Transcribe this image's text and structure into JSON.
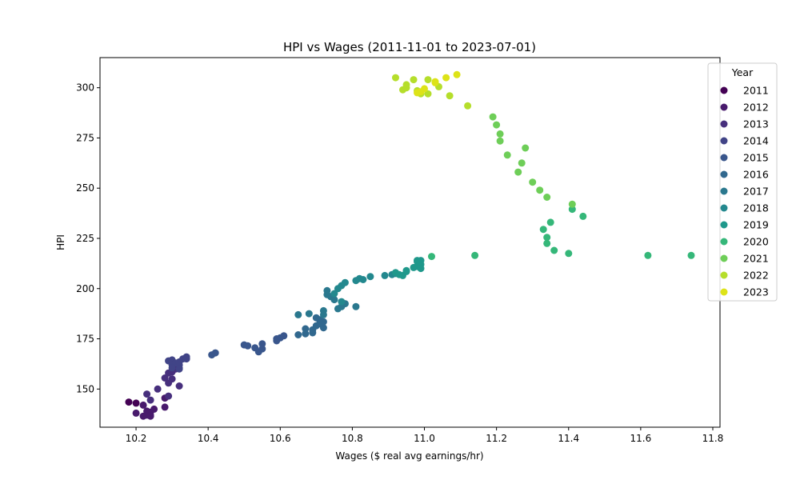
{
  "chart_data": {
    "type": "scatter",
    "title": "HPI vs Wages (2011-11-01 to 2023-07-01)",
    "xlabel": "Wages ($ real avg earnings/hr)",
    "ylabel": "HPI",
    "xlim": [
      10.1,
      11.82
    ],
    "ylim": [
      131,
      315
    ],
    "xticks": [
      10.2,
      10.4,
      10.6,
      10.8,
      11.0,
      11.2,
      11.4,
      11.6,
      11.8
    ],
    "xtick_labels": [
      "10.2",
      "10.4",
      "10.6",
      "10.8",
      "11.0",
      "11.2",
      "11.4",
      "11.6",
      "11.8"
    ],
    "yticks": [
      150,
      175,
      200,
      225,
      250,
      275,
      300
    ],
    "ytick_labels": [
      "150",
      "175",
      "200",
      "225",
      "250",
      "275",
      "300"
    ],
    "grid": false,
    "legend": {
      "title": "Year",
      "placement": "right"
    },
    "series": [
      {
        "name": "2011",
        "color": "#440154",
        "points": [
          [
            10.18,
            143.5
          ],
          [
            10.2,
            143.0
          ]
        ]
      },
      {
        "name": "2012",
        "color": "#481a6c",
        "points": [
          [
            10.2,
            138
          ],
          [
            10.22,
            142
          ],
          [
            10.22,
            136.5
          ],
          [
            10.23,
            139
          ],
          [
            10.23,
            137
          ],
          [
            10.24,
            136.5
          ],
          [
            10.24,
            138.5
          ],
          [
            10.25,
            140
          ],
          [
            10.28,
            141
          ],
          [
            10.28,
            145.5
          ],
          [
            10.24,
            137
          ]
        ]
      },
      {
        "name": "2013",
        "color": "#472f7d",
        "points": [
          [
            10.23,
            147.5
          ],
          [
            10.24,
            144.5
          ],
          [
            10.26,
            150
          ],
          [
            10.28,
            155.5
          ],
          [
            10.29,
            146.5
          ],
          [
            10.29,
            153
          ],
          [
            10.3,
            155
          ],
          [
            10.29,
            158
          ],
          [
            10.31,
            160
          ],
          [
            10.3,
            158.5
          ],
          [
            10.32,
            160.5
          ],
          [
            10.32,
            151.5
          ]
        ]
      },
      {
        "name": "2014",
        "color": "#414487",
        "points": [
          [
            10.29,
            164
          ],
          [
            10.3,
            164.5
          ],
          [
            10.3,
            162
          ],
          [
            10.31,
            163
          ],
          [
            10.32,
            160
          ],
          [
            10.32,
            162
          ],
          [
            10.33,
            165
          ],
          [
            10.34,
            166
          ],
          [
            10.34,
            165
          ],
          [
            10.3,
            160.5
          ],
          [
            10.32,
            163.5
          ]
        ]
      },
      {
        "name": "2015",
        "color": "#39568c",
        "points": [
          [
            10.41,
            167
          ],
          [
            10.42,
            168
          ],
          [
            10.5,
            172
          ],
          [
            10.51,
            171.5
          ],
          [
            10.53,
            170.5
          ],
          [
            10.54,
            168.5
          ],
          [
            10.55,
            172.5
          ],
          [
            10.55,
            170
          ],
          [
            10.59,
            174
          ],
          [
            10.6,
            175.5
          ],
          [
            10.61,
            176.5
          ],
          [
            10.59,
            175
          ]
        ]
      },
      {
        "name": "2016",
        "color": "#31688e",
        "points": [
          [
            10.65,
            177
          ],
          [
            10.67,
            180
          ],
          [
            10.67,
            177.5
          ],
          [
            10.69,
            178
          ],
          [
            10.69,
            179.5
          ],
          [
            10.7,
            181.5
          ],
          [
            10.7,
            185.5
          ],
          [
            10.71,
            182.5
          ],
          [
            10.72,
            180.5
          ],
          [
            10.72,
            183.5
          ],
          [
            10.71,
            184.5
          ],
          [
            10.71,
            183
          ]
        ]
      },
      {
        "name": "2017",
        "color": "#2a788e",
        "points": [
          [
            10.65,
            187
          ],
          [
            10.68,
            187.5
          ],
          [
            10.72,
            189
          ],
          [
            10.72,
            187
          ],
          [
            10.73,
            199
          ],
          [
            10.73,
            197
          ],
          [
            10.74,
            196
          ],
          [
            10.75,
            194.5
          ],
          [
            10.76,
            190
          ],
          [
            10.77,
            191
          ],
          [
            10.78,
            192.5
          ],
          [
            10.81,
            191
          ]
        ]
      },
      {
        "name": "2018",
        "color": "#23888e",
        "points": [
          [
            10.75,
            197.5
          ],
          [
            10.76,
            200
          ],
          [
            10.77,
            201.5
          ],
          [
            10.78,
            203
          ],
          [
            10.77,
            193.5
          ],
          [
            10.81,
            204
          ],
          [
            10.82,
            205
          ],
          [
            10.83,
            204.5
          ],
          [
            10.85,
            206
          ],
          [
            10.89,
            206.5
          ],
          [
            10.91,
            207
          ],
          [
            10.92,
            207.5
          ]
        ]
      },
      {
        "name": "2019",
        "color": "#1f988b",
        "points": [
          [
            10.92,
            208
          ],
          [
            10.93,
            207
          ],
          [
            10.94,
            206.5
          ],
          [
            10.95,
            208.5
          ],
          [
            10.97,
            210.5
          ],
          [
            10.98,
            211
          ],
          [
            10.98,
            213.5
          ],
          [
            10.99,
            214
          ],
          [
            10.99,
            212
          ],
          [
            10.99,
            210
          ],
          [
            10.98,
            214
          ],
          [
            10.95,
            209
          ]
        ]
      },
      {
        "name": "2020",
        "color": "#35b779",
        "points": [
          [
            11.02,
            216
          ],
          [
            11.14,
            216.5
          ],
          [
            11.36,
            219
          ],
          [
            11.4,
            217.5
          ],
          [
            11.62,
            216.5
          ],
          [
            11.74,
            216.5
          ],
          [
            11.34,
            222.5
          ],
          [
            11.34,
            225.5
          ],
          [
            11.33,
            229.5
          ],
          [
            11.35,
            233
          ],
          [
            11.44,
            236
          ],
          [
            11.41,
            239.5
          ]
        ]
      },
      {
        "name": "2021",
        "color": "#6ece58",
        "points": [
          [
            11.41,
            242
          ],
          [
            11.34,
            245.5
          ],
          [
            11.32,
            249
          ],
          [
            11.3,
            253
          ],
          [
            11.26,
            258
          ],
          [
            11.27,
            262.5
          ],
          [
            11.23,
            266.5
          ],
          [
            11.28,
            270
          ],
          [
            11.21,
            273.5
          ],
          [
            11.21,
            277
          ],
          [
            11.2,
            281.5
          ],
          [
            11.19,
            285.5
          ]
        ]
      },
      {
        "name": "2022",
        "color": "#b5de2b",
        "points": [
          [
            11.12,
            291
          ],
          [
            11.07,
            296
          ],
          [
            11.04,
            300.5
          ],
          [
            11.01,
            297
          ],
          [
            10.98,
            298.5
          ],
          [
            10.94,
            299
          ],
          [
            10.95,
            300
          ],
          [
            10.92,
            305
          ],
          [
            10.95,
            301.5
          ],
          [
            10.97,
            304
          ],
          [
            11.01,
            304
          ],
          [
            10.99,
            297
          ]
        ]
      },
      {
        "name": "2023",
        "color": "#dde318",
        "points": [
          [
            10.98,
            297.5
          ],
          [
            11.0,
            299.5
          ],
          [
            10.99,
            298
          ],
          [
            11.03,
            302.5
          ],
          [
            11.06,
            305
          ],
          [
            11.09,
            306.5
          ],
          [
            11.03,
            303
          ]
        ]
      }
    ]
  }
}
